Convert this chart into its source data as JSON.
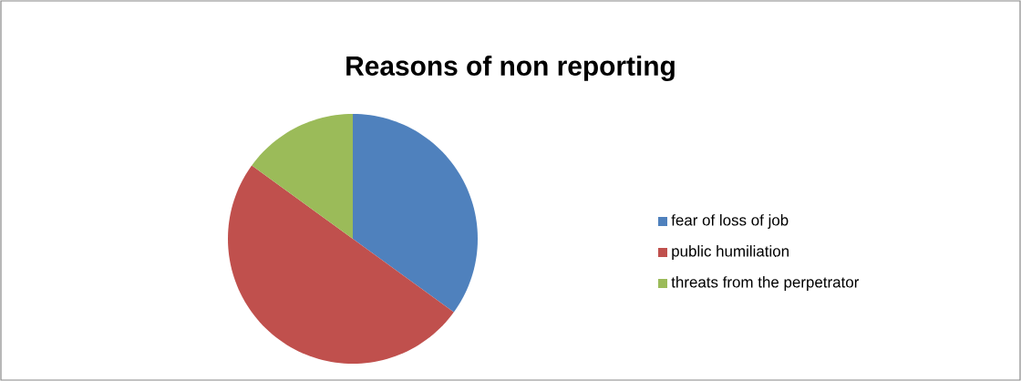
{
  "chart_data": {
    "type": "pie",
    "title": "Reasons of non reporting",
    "categories": [
      "fear of loss of job",
      "public humiliation",
      "threats from the perpetrator"
    ],
    "values": [
      35,
      50,
      15
    ],
    "colors": [
      "#4f81bd",
      "#c0504d",
      "#9bbb59"
    ],
    "legend": "right"
  }
}
